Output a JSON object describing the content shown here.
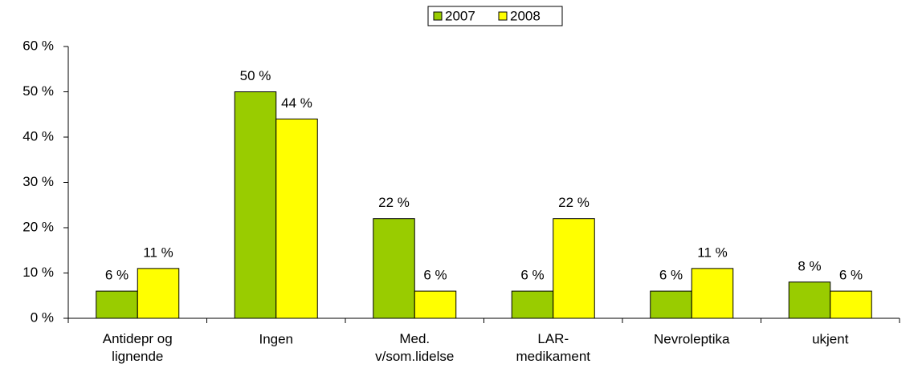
{
  "chart_data": {
    "type": "bar",
    "categories": [
      "Antidepr og\nlignende",
      "Ingen",
      "Med.\nv/som.lidelse",
      "LAR-\nmedikament",
      "Nevroleptika",
      "ukjent"
    ],
    "series": [
      {
        "name": "2007",
        "color": "#99cc00",
        "values": [
          6,
          50,
          22,
          6,
          6,
          8
        ],
        "value_labels": [
          "6 %",
          "50 %",
          "22 %",
          "6 %",
          "6 %",
          "8 %"
        ]
      },
      {
        "name": "2008",
        "color": "#ffff00",
        "values": [
          11,
          44,
          6,
          22,
          11,
          6
        ],
        "value_labels": [
          "11 %",
          "44 %",
          "6 %",
          "22 %",
          "11 %",
          "6 %"
        ]
      }
    ],
    "ylim": [
      0,
      60
    ],
    "yticks": [
      {
        "value": 0,
        "label": "0 %"
      },
      {
        "value": 10,
        "label": "10 %"
      },
      {
        "value": 20,
        "label": "20 %"
      },
      {
        "value": 30,
        "label": "30 %"
      },
      {
        "value": 40,
        "label": "40 %"
      },
      {
        "value": 50,
        "label": "50 %"
      },
      {
        "value": 60,
        "label": "60 %"
      }
    ],
    "grid": false,
    "legend": "top"
  }
}
